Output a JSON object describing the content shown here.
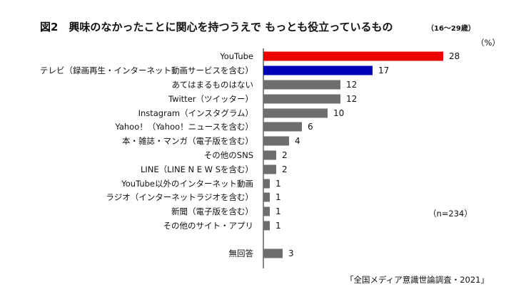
{
  "chart_data": {
    "type": "bar",
    "orientation": "horizontal",
    "title": "図2　興味のなかったことに関心を持つうえで もっとも役立っているもの",
    "subtitle": "（16〜29歳）",
    "unit": "（%）",
    "sample_size": "（n=234）",
    "source": "「全国メディア意識世論調査・2021」",
    "categories": [
      "YouTube",
      "テレビ（録画再生・インターネット動画サービスを含む）",
      "あてはまるものはない",
      "Twitter（ツイッター）",
      "Instagram（インスタグラム）",
      "Yahoo！（Yahoo！ニュースを含む）",
      "本・雑誌・マンガ（電子版を含む）",
      "その他のSNS",
      "LINE（LINE N E W Sを含む）",
      "YouTube以外のインターネット動画",
      "ラジオ（インターネットラジオを含む）",
      "新聞（電子版を含む）",
      "その他のサイト・アプリ",
      "無回答"
    ],
    "values": [
      28,
      17,
      12,
      12,
      10,
      6,
      4,
      2,
      2,
      1,
      1,
      1,
      1,
      3
    ],
    "colors": [
      "#ee0000",
      "#0000bb",
      "#6e6e6e",
      "#6e6e6e",
      "#6e6e6e",
      "#6e6e6e",
      "#6e6e6e",
      "#6e6e6e",
      "#6e6e6e",
      "#6e6e6e",
      "#6e6e6e",
      "#6e6e6e",
      "#6e6e6e",
      "#6e6e6e"
    ],
    "xlim": [
      0,
      30
    ],
    "grid": false,
    "legend": "none"
  }
}
